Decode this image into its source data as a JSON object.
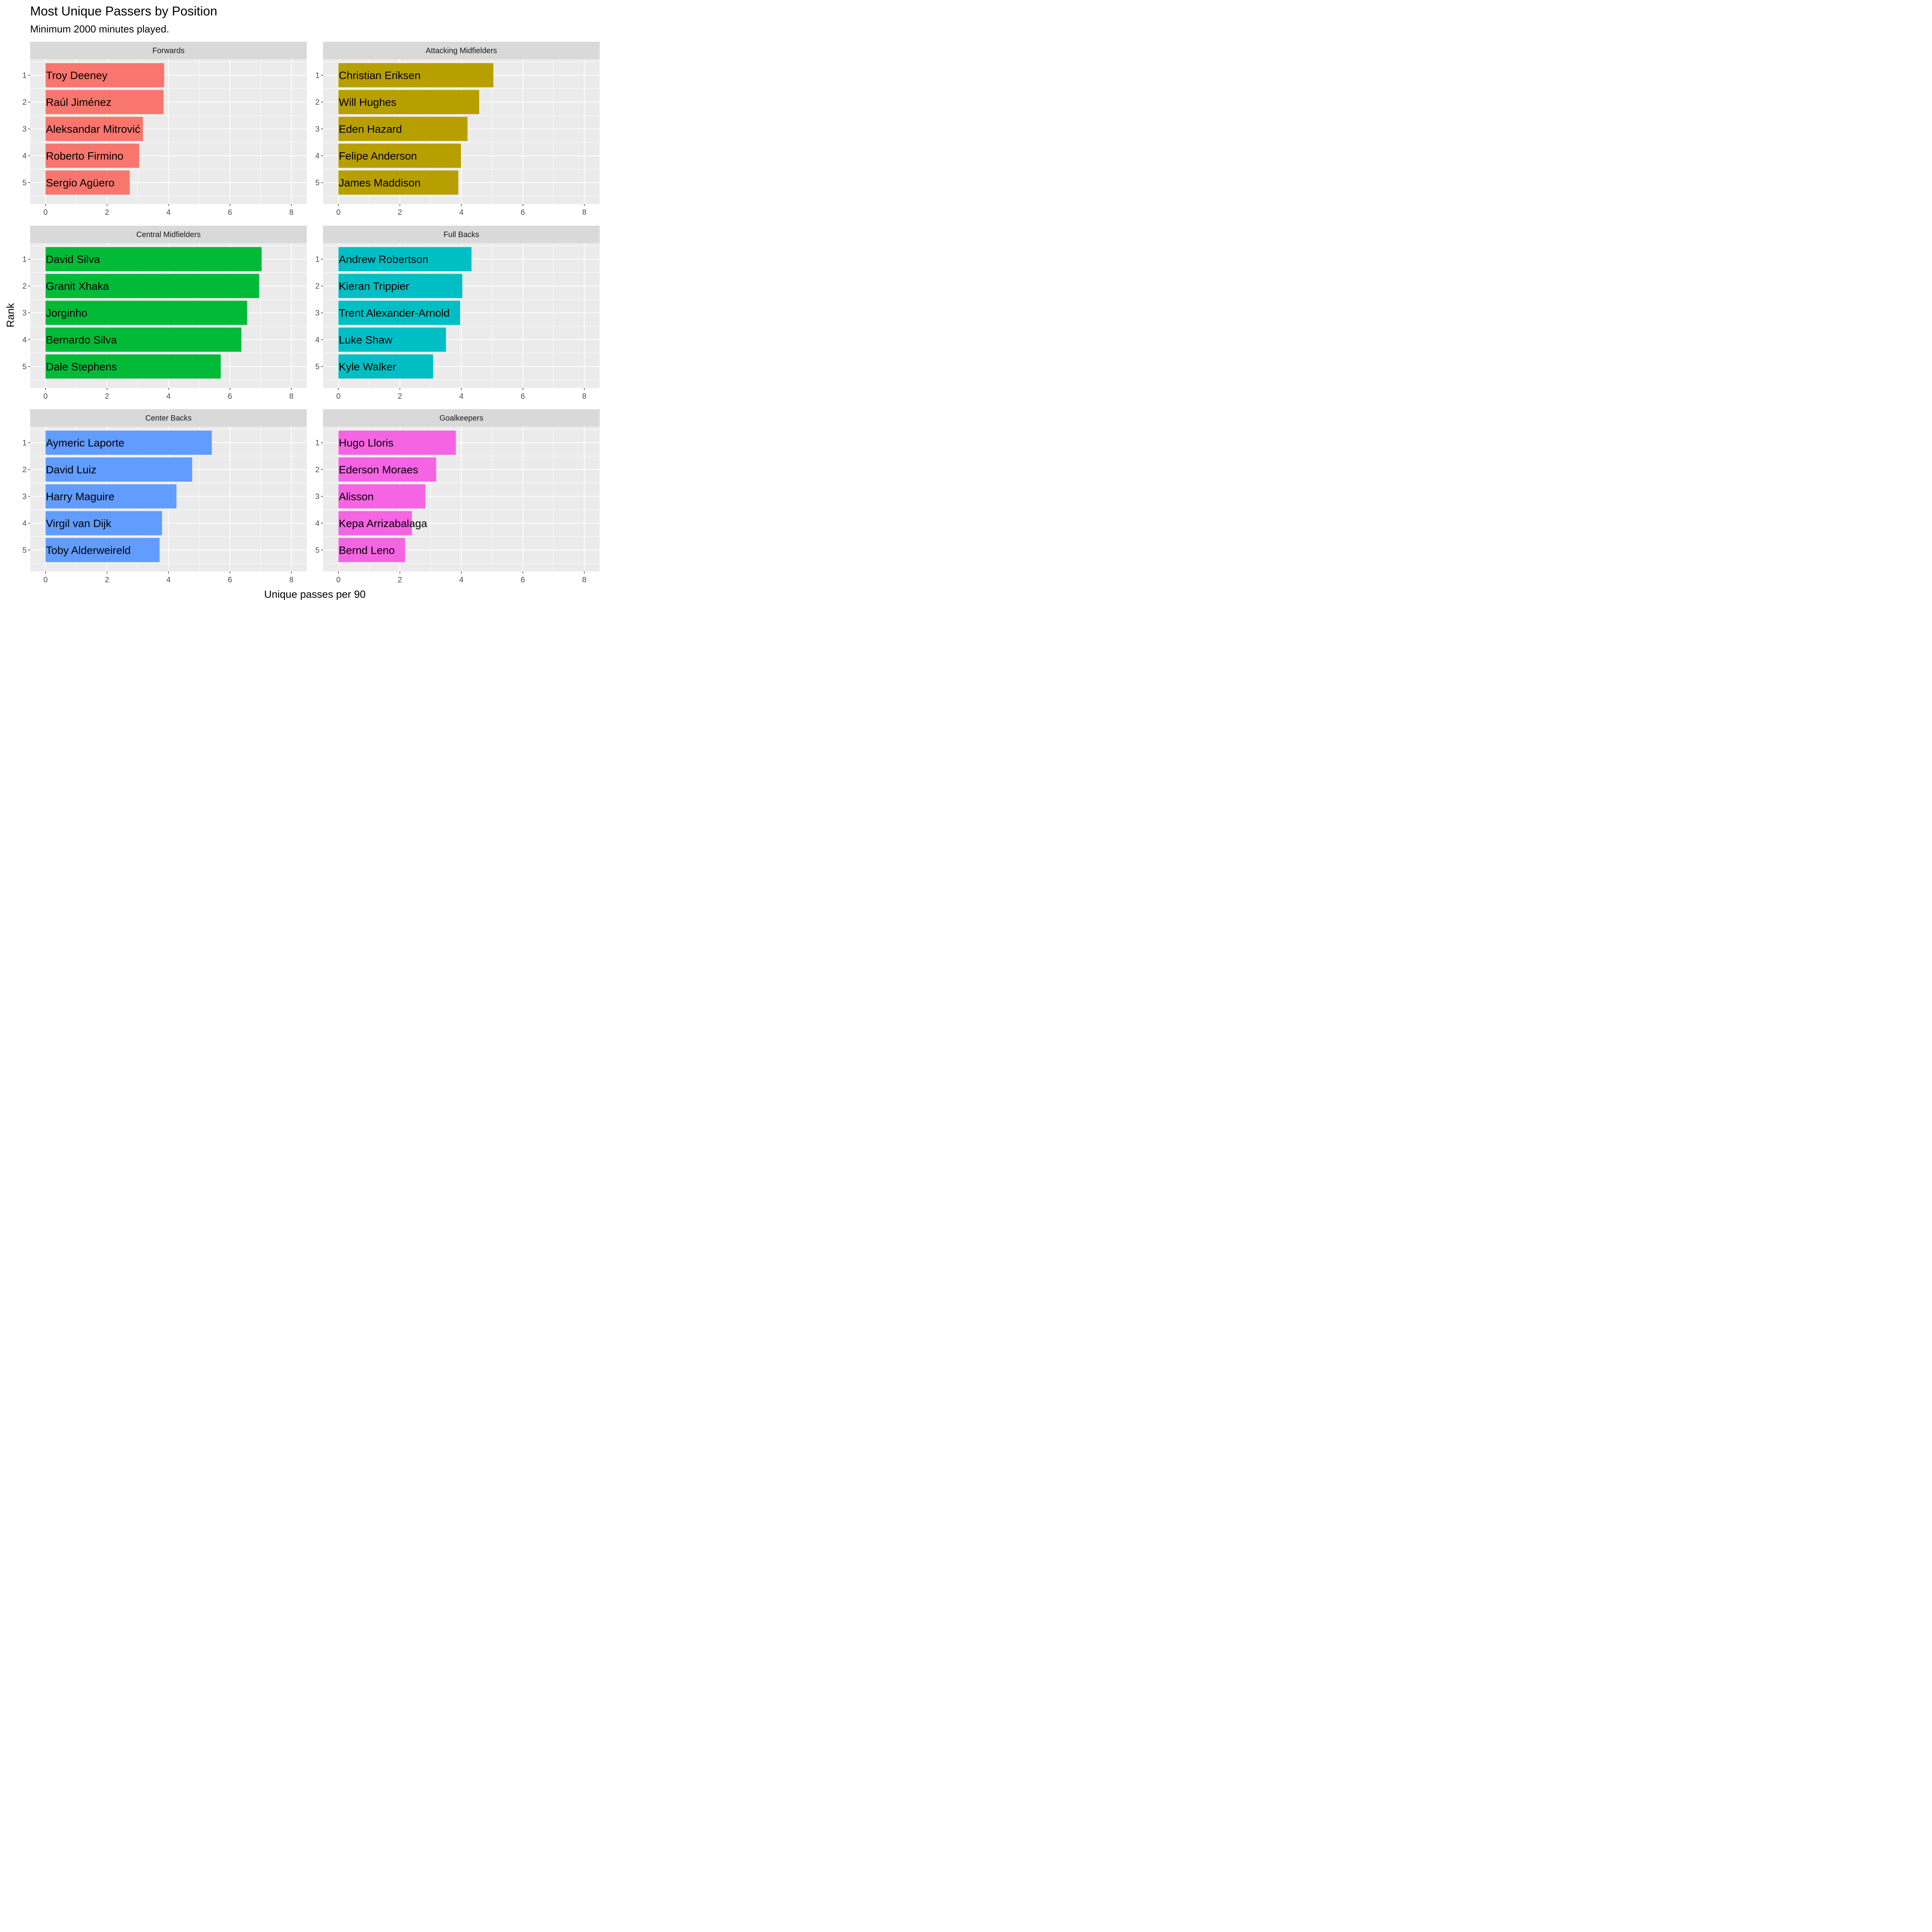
{
  "chart_data": {
    "type": "bar",
    "orientation": "horizontal",
    "title": "Most Unique Passers by Position",
    "subtitle": "Minimum 2000 minutes played.",
    "xlabel": "Unique passes per 90",
    "ylabel": "Rank",
    "xlim": [
      -0.5,
      8.5
    ],
    "xticks": [
      "0",
      "2",
      "4",
      "6",
      "8"
    ],
    "rank_labels": [
      "1",
      "2",
      "3",
      "4",
      "5"
    ],
    "grid": true,
    "legend": "none",
    "panels": [
      {
        "facet": "Forwards",
        "color": "#F8766D",
        "bars": [
          {
            "rank": "1",
            "player": "Troy Deeney",
            "value": 3.86
          },
          {
            "rank": "2",
            "player": "Raúl Jiménez",
            "value": 3.84
          },
          {
            "rank": "3",
            "player": "Aleksandar Mitrović",
            "value": 3.17
          },
          {
            "rank": "4",
            "player": "Roberto Firmino",
            "value": 3.05
          },
          {
            "rank": "5",
            "player": "Sergio Agüero",
            "value": 2.74
          }
        ]
      },
      {
        "facet": "Attacking Midfielders",
        "color": "#B79F00",
        "bars": [
          {
            "rank": "1",
            "player": "Christian Eriksen",
            "value": 5.04
          },
          {
            "rank": "2",
            "player": "Will Hughes",
            "value": 4.58
          },
          {
            "rank": "3",
            "player": "Eden Hazard",
            "value": 4.2
          },
          {
            "rank": "4",
            "player": "Felipe Anderson",
            "value": 3.99
          },
          {
            "rank": "5",
            "player": "James Maddison",
            "value": 3.9
          }
        ]
      },
      {
        "facet": "Central Midfielders",
        "color": "#00BA38",
        "bars": [
          {
            "rank": "1",
            "player": "David Silva",
            "value": 7.03
          },
          {
            "rank": "2",
            "player": "Granit Xhaka",
            "value": 6.95
          },
          {
            "rank": "3",
            "player": "Jorginho",
            "value": 6.56
          },
          {
            "rank": "4",
            "player": "Bernardo Silva",
            "value": 6.37
          },
          {
            "rank": "5",
            "player": "Dale Stephens",
            "value": 5.7
          }
        ]
      },
      {
        "facet": "Full Backs",
        "color": "#00BFC4",
        "bars": [
          {
            "rank": "1",
            "player": "Andrew Robertson",
            "value": 4.33
          },
          {
            "rank": "2",
            "player": "Kieran Trippier",
            "value": 4.03
          },
          {
            "rank": "3",
            "player": "Trent Alexander-Arnold",
            "value": 3.96
          },
          {
            "rank": "4",
            "player": "Luke Shaw",
            "value": 3.5
          },
          {
            "rank": "5",
            "player": "Kyle Walker",
            "value": 3.08
          }
        ]
      },
      {
        "facet": "Center Backs",
        "color": "#619CFF",
        "bars": [
          {
            "rank": "1",
            "player": "Aymeric Laporte",
            "value": 5.41
          },
          {
            "rank": "2",
            "player": "David Luiz",
            "value": 4.77
          },
          {
            "rank": "3",
            "player": "Harry Maguire",
            "value": 4.26
          },
          {
            "rank": "4",
            "player": "Virgil van Dijk",
            "value": 3.79
          },
          {
            "rank": "5",
            "player": "Toby Alderweireld",
            "value": 3.71
          }
        ]
      },
      {
        "facet": "Goalkeepers",
        "color": "#F564E3",
        "bars": [
          {
            "rank": "1",
            "player": "Hugo Lloris",
            "value": 3.82
          },
          {
            "rank": "2",
            "player": "Ederson Moraes",
            "value": 3.18
          },
          {
            "rank": "3",
            "player": "Alisson",
            "value": 2.83
          },
          {
            "rank": "4",
            "player": "Kepa Arrizabalaga",
            "value": 2.39
          },
          {
            "rank": "5",
            "player": "Bernd Leno",
            "value": 2.17
          }
        ]
      }
    ]
  },
  "colors": {
    "panel_background": "#EBEBEB",
    "strip_background": "#D9D9D9",
    "grid_line": "#FFFFFF",
    "axis_text": "#4D4D4D",
    "tick_mark": "#333333"
  }
}
